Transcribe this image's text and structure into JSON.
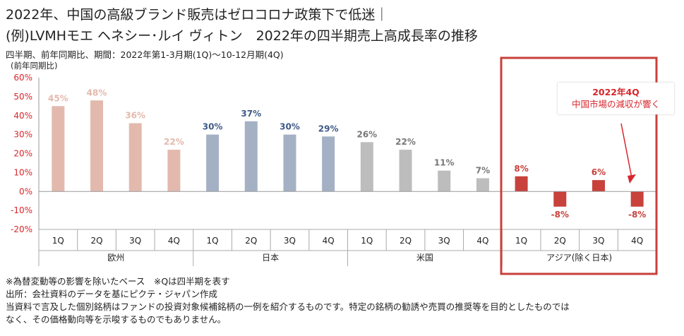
{
  "title_line1": "2022年、中国の高級ブランド販売はゼロコロナ政策下で低迷｜",
  "title_line2": "(例)LVMHモエ ヘネシー･ルイ ヴィトン　2022年の四半期売上高成長率の推移",
  "subtitle": "四半期、前年同期比、期間：2022年第1-3月期(1Q)～10-12月期(4Q)",
  "callout": {
    "line1": "2022年4Q",
    "line2": "中国市場の減収が響く"
  },
  "notes": [
    "※為替変動等の影響を除いたベース　※Qは四半期を表す",
    "出所：会社資料のデータを基にピクテ・ジャパン作成",
    "当資料で言及した個別銘柄はファンドの投資対象候補銘柄の一例を紹介するものです。特定の銘柄の勧誘や売買の推奨等を目的としたものでは",
    "なく、その価格動向等を示唆するものでもありません。"
  ],
  "colors": {
    "highlight": "#c8413b",
    "callout_text": "#d7262c"
  },
  "chart_data": {
    "type": "bar",
    "ylabel": "(前年同期比)",
    "ylim": [
      -20,
      60
    ],
    "yticks": [
      "60%",
      "50%",
      "40%",
      "30%",
      "20%",
      "10%",
      "0%",
      "-10%",
      "-20%"
    ],
    "ytick_values": [
      60,
      50,
      40,
      30,
      20,
      10,
      0,
      -10,
      -20
    ],
    "grid": false,
    "groups": [
      {
        "name": "欧州",
        "color": "#e3b9ae",
        "label_color": "#e3b9ae",
        "categories": [
          "1Q",
          "2Q",
          "3Q",
          "4Q"
        ],
        "values": [
          45,
          48,
          36,
          22
        ],
        "labels": [
          "45%",
          "48%",
          "36%",
          "22%"
        ]
      },
      {
        "name": "日本",
        "color": "#a4b1c4",
        "label_color": "#3f5a87",
        "categories": [
          "1Q",
          "2Q",
          "3Q",
          "4Q"
        ],
        "values": [
          30,
          37,
          30,
          29
        ],
        "labels": [
          "30%",
          "37%",
          "30%",
          "29%"
        ]
      },
      {
        "name": "米国",
        "color": "#bdbdbd",
        "label_color": "#777777",
        "categories": [
          "1Q",
          "2Q",
          "3Q",
          "4Q"
        ],
        "values": [
          26,
          22,
          11,
          7
        ],
        "labels": [
          "26%",
          "22%",
          "11%",
          "7%"
        ]
      },
      {
        "name": "アジア(除く日本)",
        "color": "#c8413b",
        "label_color": "#c8413b",
        "categories": [
          "1Q",
          "2Q",
          "3Q",
          "4Q"
        ],
        "values": [
          8,
          -8,
          6,
          -8
        ],
        "labels": [
          "8%",
          "-8%",
          "6%",
          "-8%"
        ]
      }
    ]
  }
}
